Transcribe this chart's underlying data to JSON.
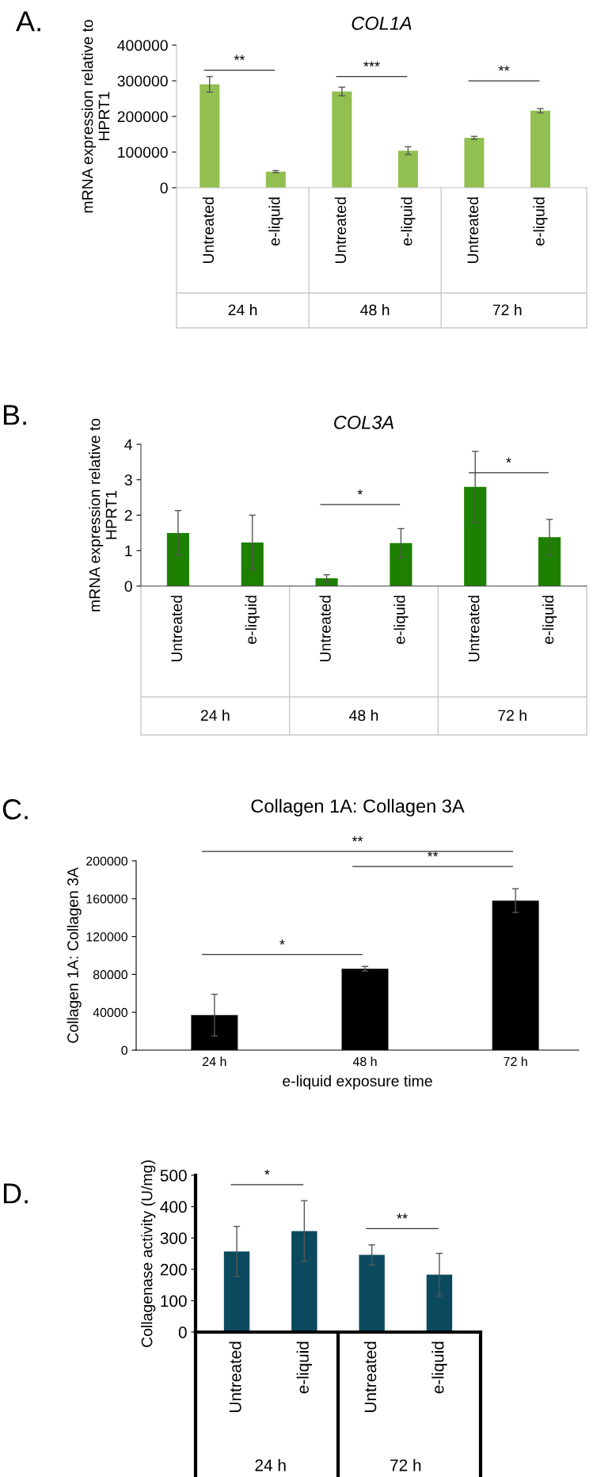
{
  "chart_data": [
    {
      "type": "bar",
      "title": "COL1A",
      "ylabel": "mRNA expression relative to HPRT1",
      "categories": [
        "Untreated",
        "e-liquid",
        "Untreated",
        "e-liquid",
        "Untreated",
        "e-liquid"
      ],
      "values": [
        290000,
        45000,
        270000,
        104000,
        140000,
        216000
      ],
      "errors": [
        22000,
        3000,
        12000,
        11000,
        4000,
        6000
      ],
      "color": "#92c050",
      "ylim": [
        0,
        400000
      ],
      "yticks": [
        0,
        100000,
        200000,
        300000,
        400000
      ],
      "grid": false,
      "legend": false,
      "annotations": [
        "A.",
        "24 h",
        "48 h",
        "72 h",
        "**",
        "***",
        "**"
      ]
    },
    {
      "type": "bar",
      "title": "COL3A",
      "ylabel": "mRNA expression relative to HPRT1",
      "categories": [
        "Untreated",
        "e-liquid",
        "Untreated",
        "e-liquid",
        "Untreated",
        "e-liquid"
      ],
      "values": [
        1.5,
        1.23,
        0.22,
        1.21,
        2.8,
        1.38
      ],
      "errors": [
        0.63,
        0.77,
        0.1,
        0.41,
        1.0,
        0.5
      ],
      "color": "#1e8000",
      "ylim": [
        0,
        4
      ],
      "yticks": [
        0,
        1,
        2,
        3,
        4
      ],
      "grid": false,
      "legend": false,
      "annotations": [
        "B.",
        "24 h",
        "48 h",
        "72 h",
        "*",
        "*"
      ]
    },
    {
      "type": "bar",
      "title": "Collagen 1A: Collagen 3A",
      "ylabel": "Collagen 1A: Collagen 3A",
      "xlabel": "e-liquid exposure time",
      "categories": [
        "24 h",
        "48 h",
        "72 h"
      ],
      "values": [
        37000,
        86000,
        158000
      ],
      "errors": [
        22000,
        2500,
        12500
      ],
      "color": "#000000",
      "ylim": [
        0,
        200000
      ],
      "yticks": [
        0,
        40000,
        80000,
        120000,
        160000,
        200000
      ],
      "grid": false,
      "legend": false,
      "annotations": [
        "C.",
        "**",
        "**",
        "*"
      ]
    },
    {
      "type": "bar",
      "ylabel": "Collagenase activity (U/mg)",
      "categories": [
        "Untreated",
        "e-liquid",
        "Untreated",
        "e-liquid"
      ],
      "values": [
        257,
        322,
        246,
        183
      ],
      "errors": [
        80,
        97,
        32,
        68
      ],
      "color": "#0b4a5e",
      "ylim": [
        0,
        500
      ],
      "yticks": [
        0,
        100,
        200,
        300,
        400,
        500
      ],
      "grid": false,
      "legend": false,
      "annotations": [
        "D.",
        "24 h",
        "72 h",
        "*",
        "**"
      ]
    }
  ]
}
